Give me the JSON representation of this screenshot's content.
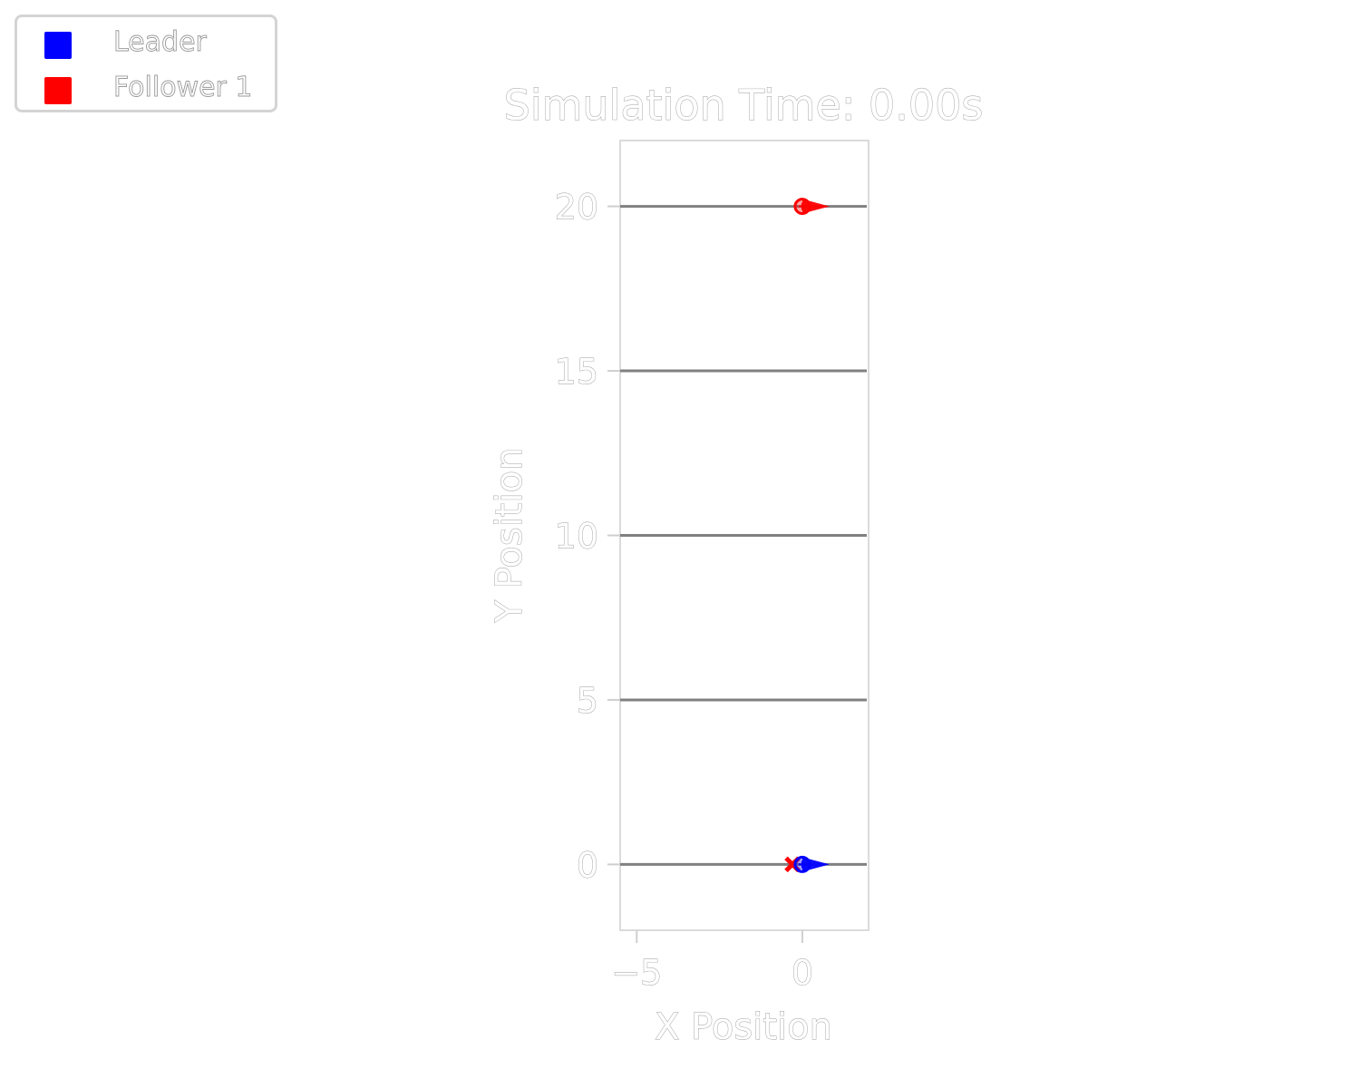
{
  "chart_data": {
    "type": "scatter",
    "title": "Simulation Time: 0.00s",
    "xlabel": "X Position",
    "ylabel": "Y Position",
    "xlim": [
      -5.5,
      2
    ],
    "ylim": [
      -2,
      22
    ],
    "xticks": [
      {
        "value": -5,
        "label": "−5"
      },
      {
        "value": 0,
        "label": "0"
      }
    ],
    "yticks": [
      {
        "value": 0,
        "label": "0"
      },
      {
        "value": 5,
        "label": "5"
      },
      {
        "value": 10,
        "label": "10"
      },
      {
        "value": 15,
        "label": "15"
      },
      {
        "value": 20,
        "label": "20"
      }
    ],
    "lanes": [
      0,
      5,
      10,
      15,
      20
    ],
    "legend_position": "top-left",
    "series": [
      {
        "name": "Leader",
        "color": "#0000ff",
        "agent": {
          "x": 0,
          "y": 0,
          "heading": "right"
        }
      },
      {
        "name": "Follower 1",
        "color": "#ff0000",
        "agent": {
          "x": 0,
          "y": 20,
          "heading": "right"
        },
        "target": {
          "x": -0.3,
          "y": 0,
          "marker": "x"
        }
      }
    ]
  }
}
